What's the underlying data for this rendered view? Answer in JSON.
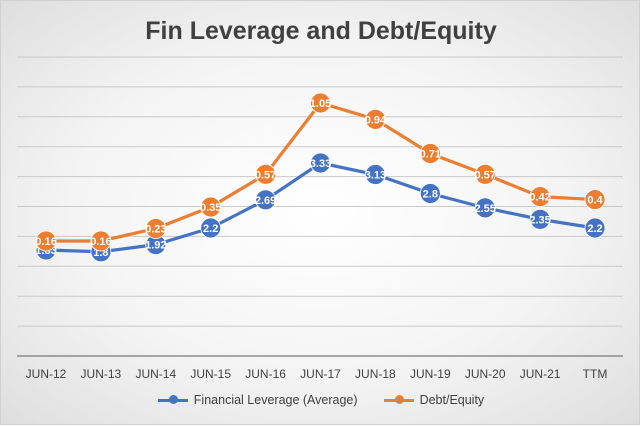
{
  "chart_data": {
    "type": "line",
    "title": "Fin Leverage and Debt/Equity",
    "categories": [
      "JUN-12",
      "JUN-13",
      "JUN-14",
      "JUN-15",
      "JUN-16",
      "JUN-17",
      "JUN-18",
      "JUN-19",
      "JUN-20",
      "JUN-21",
      "TTM"
    ],
    "series": [
      {
        "name": "Financial Leverage (Average)",
        "color": "#4472C4",
        "values": [
          1.83,
          1.8,
          1.92,
          2.2,
          2.69,
          3.33,
          3.13,
          2.8,
          2.55,
          2.35,
          2.2
        ],
        "labels": [
          "1.83",
          "1.8",
          "1.92",
          "2.2",
          "2.69",
          "3.33",
          "3.13",
          "2.8",
          "2.55",
          "2.35",
          "2.2"
        ]
      },
      {
        "name": "Debt/Equity",
        "color": "#ED7D31",
        "values": [
          0.16,
          0.16,
          0.23,
          0.35,
          0.57,
          1.05,
          0.94,
          0.71,
          0.57,
          0.42,
          0.4
        ],
        "labels": [
          "0.16",
          "0.16",
          "0.23",
          "0.35",
          "0.57",
          "1.05",
          "0.94",
          "0.71",
          "0.57",
          "0.42",
          "0.4"
        ]
      }
    ],
    "xlabel": "",
    "ylabel": "",
    "grid": true,
    "y_axis_labels_shown": false,
    "legend_position": "bottom"
  }
}
